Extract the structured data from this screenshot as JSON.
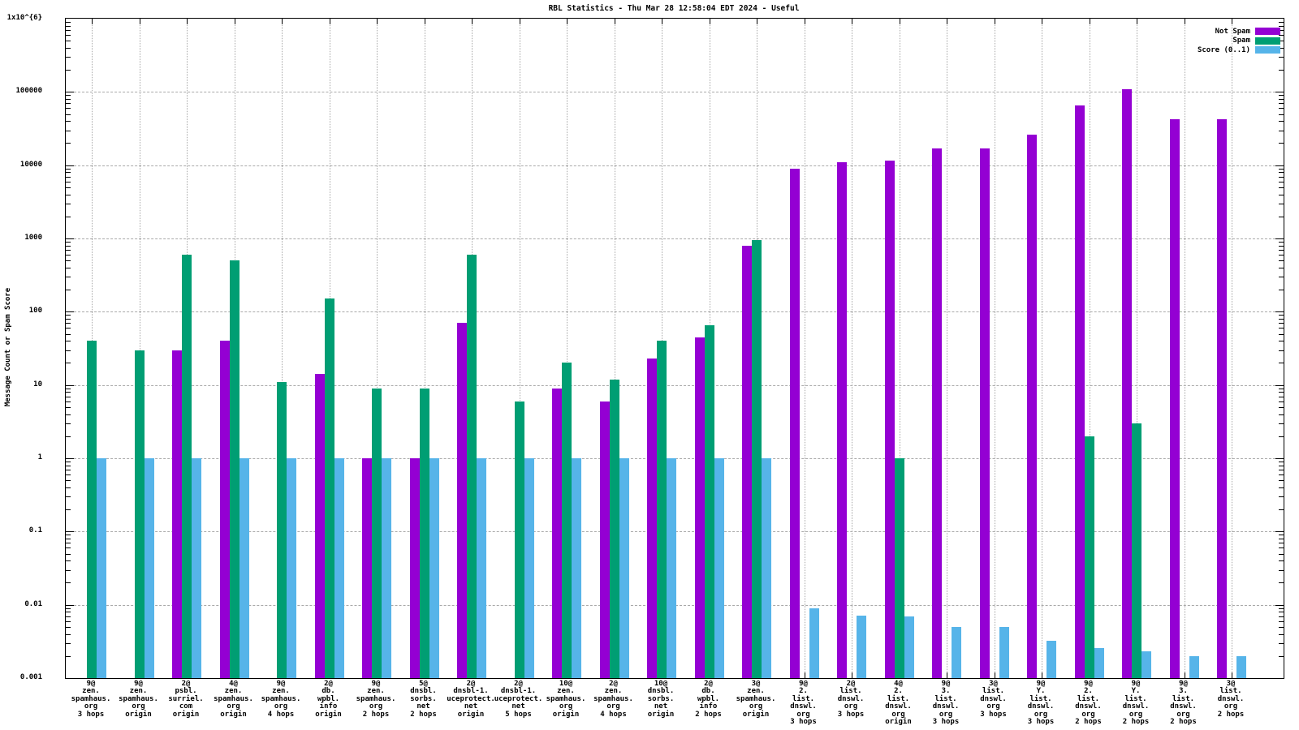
{
  "chart_data": {
    "type": "bar",
    "title": "RBL Statistics - Thu Mar 28 12:58:04 EDT 2024 - Useful",
    "ylabel": "Message Count or Spam Score",
    "y_scale": "log",
    "ylim": [
      0.001,
      1000000
    ],
    "y_tick_labels": [
      "1x10^{6}",
      "100000",
      "10000",
      "1000",
      "100",
      "10",
      "1",
      "0.1",
      "0.01",
      "0.001"
    ],
    "grid": true,
    "legend_position": "top-right-inside",
    "axis_color": "#000000",
    "grid_color": "#a9a9a9",
    "categories": [
      [
        "9@",
        "zen.",
        "spamhaus.",
        "org",
        "3 hops"
      ],
      [
        "9@",
        "zen.",
        "spamhaus.",
        "org",
        "origin"
      ],
      [
        "2@",
        "psbl.",
        "surriel.",
        "com",
        "origin"
      ],
      [
        "4@",
        "zen.",
        "spamhaus.",
        "org",
        "origin"
      ],
      [
        "9@",
        "zen.",
        "spamhaus.",
        "org",
        "4 hops"
      ],
      [
        "2@",
        "db.",
        "wpbl.",
        "info",
        "origin"
      ],
      [
        "9@",
        "zen.",
        "spamhaus.",
        "org",
        "2 hops"
      ],
      [
        "5@",
        "dnsbl.",
        "sorbs.",
        "net",
        "2 hops"
      ],
      [
        "2@",
        "dnsbl-1.",
        "uceprotect.",
        "net",
        "origin"
      ],
      [
        "2@",
        "dnsbl-1.",
        "uceprotect.",
        "net",
        "5 hops"
      ],
      [
        "10@",
        "zen.",
        "spamhaus.",
        "org",
        "origin"
      ],
      [
        "2@",
        "zen.",
        "spamhaus.",
        "org",
        "4 hops"
      ],
      [
        "10@",
        "dnsbl.",
        "sorbs.",
        "net",
        "origin"
      ],
      [
        "2@",
        "db.",
        "wpbl.",
        "info",
        "2 hops"
      ],
      [
        "3@",
        "zen.",
        "spamhaus.",
        "org",
        "origin"
      ],
      [
        "9@",
        "2.",
        "list.",
        "dnswl.",
        "org",
        "3 hops"
      ],
      [
        "2@",
        "list.",
        "dnswl.",
        "org",
        "3 hops"
      ],
      [
        "4@",
        "2.",
        "list.",
        "dnswl.",
        "org",
        "origin"
      ],
      [
        "9@",
        "3.",
        "list.",
        "dnswl.",
        "org",
        "3 hops"
      ],
      [
        "3@",
        "list.",
        "dnswl.",
        "org",
        "3 hops"
      ],
      [
        "9@",
        "Y.",
        "list.",
        "dnswl.",
        "org",
        "3 hops"
      ],
      [
        "9@",
        "2.",
        "list.",
        "dnswl.",
        "org",
        "2 hops"
      ],
      [
        "9@",
        "Y.",
        "list.",
        "dnswl.",
        "org",
        "2 hops"
      ],
      [
        "9@",
        "3.",
        "list.",
        "dnswl.",
        "org",
        "2 hops"
      ],
      [
        "3@",
        "list.",
        "dnswl.",
        "org",
        "2 hops"
      ]
    ],
    "series": [
      {
        "name": "Not Spam",
        "color": "#9400d3",
        "values": [
          null,
          null,
          30,
          40,
          null,
          14,
          1,
          1,
          70,
          null,
          9,
          6,
          23,
          45,
          800,
          9000,
          11000,
          11500,
          17000,
          17000,
          26000,
          65000,
          110000,
          42000,
          42000
        ]
      },
      {
        "name": "Spam",
        "color": "#009e73",
        "values": [
          40,
          30,
          600,
          500,
          11,
          150,
          9,
          9,
          600,
          6,
          20,
          12,
          40,
          65,
          950,
          null,
          null,
          1,
          null,
          null,
          null,
          2,
          3,
          null,
          null
        ]
      },
      {
        "name": "Score (0..1)",
        "color": "#56b4e9",
        "values": [
          1,
          1,
          1,
          1,
          1,
          1,
          1,
          1,
          1,
          1,
          1,
          1,
          1,
          1,
          1,
          0.009,
          0.0072,
          0.007,
          0.005,
          0.005,
          0.0032,
          0.0026,
          0.0023,
          0.002,
          0.002
        ]
      }
    ]
  }
}
